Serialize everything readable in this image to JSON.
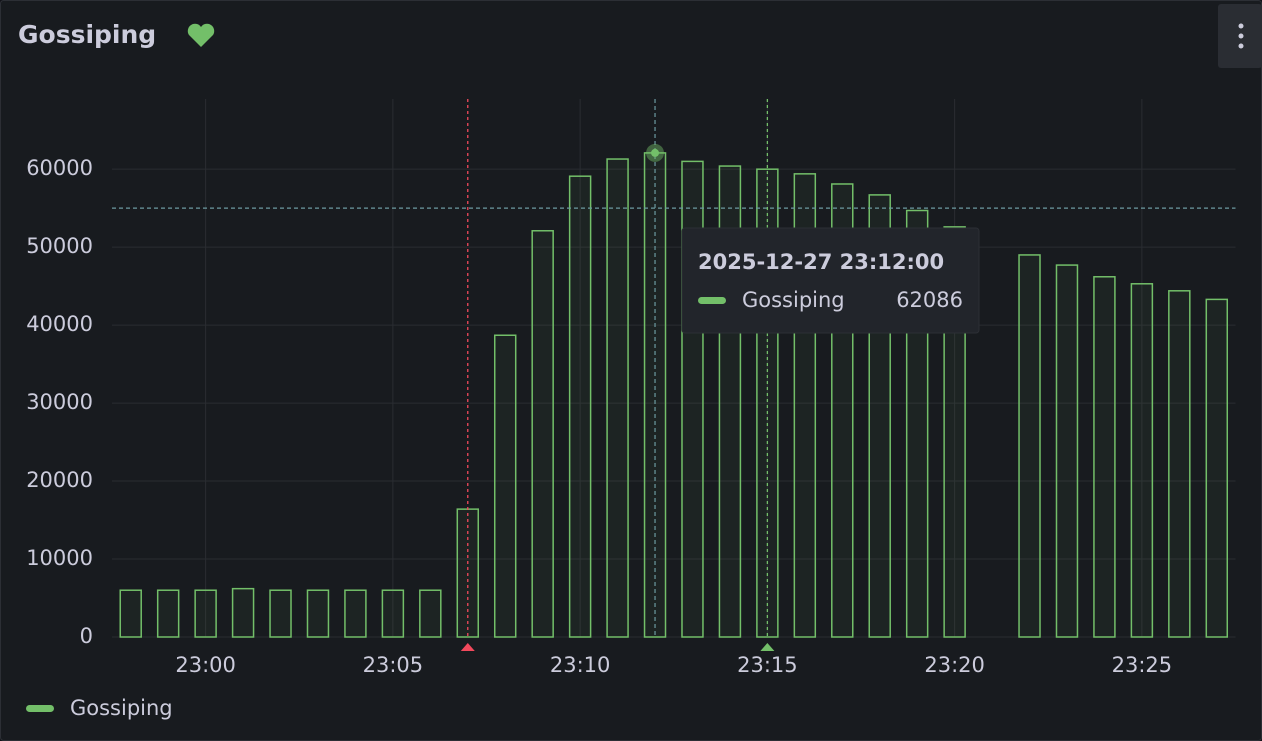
{
  "chart_data": {
    "type": "bar",
    "title": "Gossiping",
    "categories": [
      null,
      null,
      "23:00",
      null,
      null,
      null,
      null,
      "23:05",
      null,
      null,
      null,
      null,
      "23:10",
      null,
      null,
      null,
      null,
      "23:15",
      null,
      null,
      null,
      null,
      "23:20",
      null,
      null,
      null,
      null,
      "23:25",
      null,
      null
    ],
    "series": [
      {
        "name": "Gossiping",
        "color": "#73bf69",
        "values": [
          6000,
          6000,
          6000,
          6200,
          6000,
          6000,
          6000,
          6000,
          6000,
          16400,
          38700,
          52100,
          59100,
          61300,
          62086,
          61000,
          60400,
          60000,
          59400,
          58100,
          56700,
          54700,
          52600,
          null,
          49000,
          47700,
          46200,
          45300,
          44400,
          43300
        ]
      }
    ],
    "ylim": [
      0,
      69000
    ],
    "yticks": [
      0,
      10000,
      20000,
      30000,
      40000,
      50000,
      60000
    ],
    "grid": true,
    "threshold": 55000,
    "annotations": [
      {
        "index": 9,
        "color": "#f2495c"
      },
      {
        "index": 17,
        "color": "#73bf69"
      }
    ],
    "tooltip": {
      "index": 14,
      "time": "2025-12-27 23:12:00"
    }
  }
}
